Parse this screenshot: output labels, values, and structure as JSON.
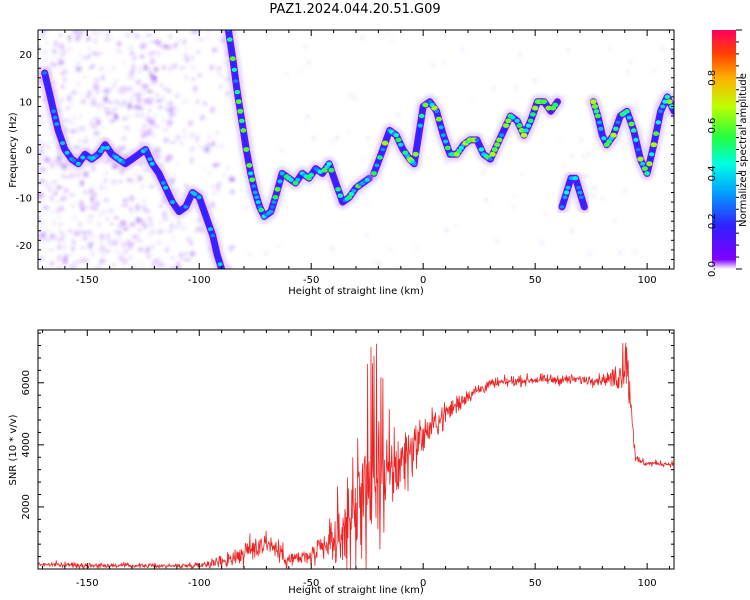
{
  "title": "PAZ1.2024.044.20.51.G09",
  "colors": {
    "snr_line": "#ee2222",
    "axis": "#000000",
    "background": "#ffffff"
  },
  "chart_data": [
    {
      "type": "heatmap",
      "name": "spectrogram",
      "xlabel": "Height of straight line (km)",
      "ylabel": "Frequency (Hz)",
      "xlim": [
        -172,
        112
      ],
      "ylim": [
        -25,
        25
      ],
      "x_ticks": [
        -150,
        -100,
        -50,
        0,
        50,
        100
      ],
      "y_ticks": [
        -20,
        -10,
        0,
        10,
        20
      ],
      "grid": false,
      "colormap": "rainbow (violet low → red high)",
      "colorbar": {
        "label": "Normalized spectral amplitude",
        "range": [
          0.0,
          1.0
        ],
        "ticks": [
          0.0,
          0.2,
          0.4,
          0.6,
          0.8
        ]
      },
      "traces": [
        {
          "segment": "left-noisy",
          "points": [
            [
              -169,
              16
            ],
            [
              -167,
              12
            ],
            [
              -165,
              8
            ],
            [
              -163,
              4
            ],
            [
              -160,
              0
            ],
            [
              -157,
              -2
            ],
            [
              -154,
              -3
            ],
            [
              -151,
              -1
            ],
            [
              -148,
              -2
            ],
            [
              -145,
              -1
            ],
            [
              -142,
              1
            ],
            [
              -139,
              -1
            ],
            [
              -136,
              -2
            ],
            [
              -133,
              -3
            ],
            [
              -130,
              -2
            ],
            [
              -127,
              -1
            ],
            [
              -124,
              0
            ],
            [
              -121,
              -3
            ],
            [
              -118,
              -5
            ],
            [
              -115,
              -8
            ],
            [
              -112,
              -11
            ],
            [
              -109,
              -13
            ],
            [
              -106,
              -12
            ],
            [
              -103,
              -9
            ],
            [
              -100,
              -10
            ],
            [
              -97,
              -14
            ],
            [
              -94,
              -18
            ],
            [
              -92,
              -22
            ],
            [
              -90,
              -25
            ]
          ],
          "amplitude": 0.3
        },
        {
          "segment": "descending",
          "points": [
            [
              -87,
              25
            ],
            [
              -85,
              19
            ],
            [
              -83,
              12
            ],
            [
              -81,
              6
            ],
            [
              -79,
              0
            ],
            [
              -77,
              -5
            ],
            [
              -75,
              -9
            ],
            [
              -73,
              -12
            ],
            [
              -71,
              -14
            ],
            [
              -68,
              -13
            ],
            [
              -66,
              -10
            ],
            [
              -63,
              -5
            ],
            [
              -60,
              -6
            ],
            [
              -57,
              -7
            ],
            [
              -54,
              -5
            ],
            [
              -51,
              -6
            ],
            [
              -48,
              -4
            ],
            [
              -45,
              -5
            ],
            [
              -42,
              -3
            ],
            [
              -39,
              -7
            ],
            [
              -36,
              -11
            ],
            [
              -33,
              -10
            ],
            [
              -30,
              -8
            ],
            [
              -27,
              -7
            ],
            [
              -24,
              -6
            ]
          ],
          "amplitude": 0.45
        },
        {
          "segment": "oscillating",
          "points": [
            [
              -22,
              -5
            ],
            [
              -18,
              0
            ],
            [
              -15,
              4
            ],
            [
              -12,
              3
            ],
            [
              -9,
              0
            ],
            [
              -6,
              -2
            ],
            [
              -4,
              -3
            ],
            [
              -2,
              3
            ],
            [
              0,
              9
            ],
            [
              3,
              10
            ],
            [
              6,
              8
            ],
            [
              9,
              3
            ],
            [
              12,
              -1
            ],
            [
              15,
              -1
            ],
            [
              18,
              1
            ],
            [
              21,
              2
            ],
            [
              24,
              2
            ],
            [
              27,
              -1
            ],
            [
              30,
              -2
            ],
            [
              33,
              1
            ],
            [
              36,
              4
            ],
            [
              39,
              7
            ],
            [
              42,
              6
            ],
            [
              45,
              3
            ],
            [
              48,
              6
            ],
            [
              51,
              10
            ],
            [
              54,
              10
            ],
            [
              57,
              8
            ],
            [
              60,
              10
            ]
          ],
          "amplitude": 0.5
        },
        {
          "segment": "isolated",
          "points": [
            [
              62,
              -12
            ],
            [
              64,
              -9
            ],
            [
              66,
              -6
            ],
            [
              68,
              -6
            ],
            [
              70,
              -9
            ],
            [
              72,
              -12
            ]
          ],
          "amplitude": 0.35
        },
        {
          "segment": "right",
          "points": [
            [
              76,
              10
            ],
            [
              78,
              7
            ],
            [
              80,
              3
            ],
            [
              82,
              1
            ],
            [
              85,
              3
            ],
            [
              88,
              7
            ],
            [
              91,
              8
            ],
            [
              94,
              4
            ],
            [
              97,
              -2
            ],
            [
              100,
              -5
            ],
            [
              103,
              1
            ],
            [
              106,
              8
            ],
            [
              109,
              11
            ],
            [
              112,
              8
            ]
          ],
          "amplitude": 0.5
        }
      ]
    },
    {
      "type": "line",
      "name": "snr",
      "xlabel": "Height of straight line (km)",
      "ylabel": "SNR (10 * v/v)",
      "xlim": [
        -172,
        112
      ],
      "ylim": [
        0,
        7700
      ],
      "x_ticks": [
        -150,
        -100,
        -50,
        0,
        50,
        100
      ],
      "y_ticks": [
        2000,
        4000,
        6000
      ],
      "grid": false,
      "envelope": {
        "x": [
          -172,
          -150,
          -130,
          -110,
          -100,
          -90,
          -80,
          -70,
          -60,
          -50,
          -40,
          -30,
          -20,
          -10,
          0,
          10,
          20,
          30,
          40,
          50,
          60,
          70,
          80,
          85,
          88,
          90,
          91,
          92,
          95,
          100,
          105,
          112
        ],
        "mean": [
          150,
          120,
          110,
          100,
          130,
          250,
          500,
          900,
          300,
          400,
          800,
          1700,
          2600,
          3500,
          4300,
          5000,
          5600,
          5950,
          6050,
          6100,
          6100,
          6100,
          6100,
          6150,
          6200,
          6500,
          6400,
          6000,
          3500,
          3400,
          3400,
          3380
        ],
        "noise": [
          70,
          70,
          60,
          60,
          80,
          180,
          350,
          400,
          250,
          250,
          600,
          1600,
          1700,
          1000,
          500,
          350,
          200,
          150,
          130,
          130,
          130,
          130,
          150,
          250,
          400,
          500,
          600,
          700,
          150,
          80,
          80,
          80
        ]
      }
    }
  ]
}
